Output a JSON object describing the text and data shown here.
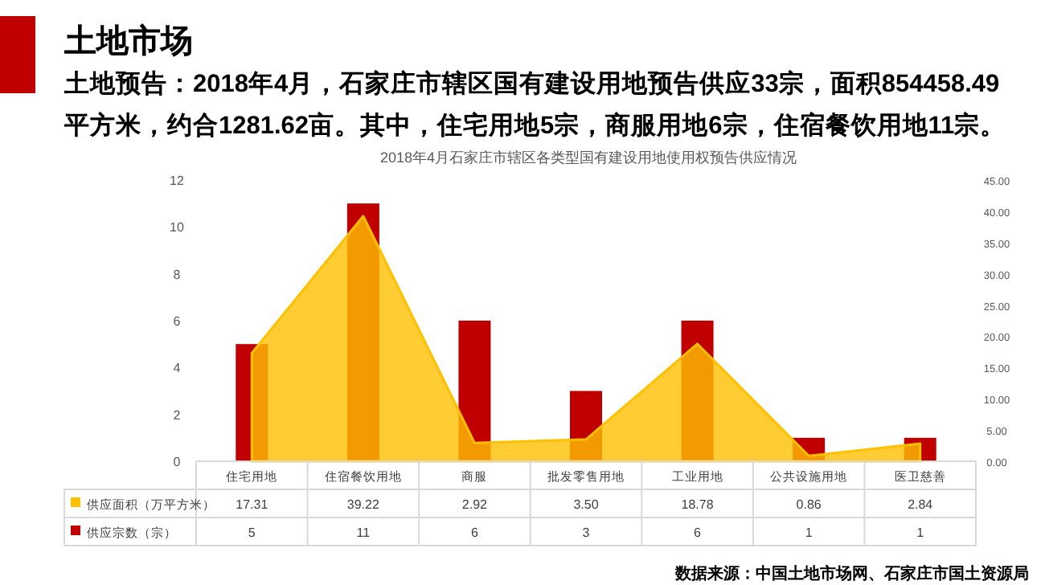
{
  "chart_data": {
    "type": "bar",
    "title": "土地市场",
    "subtitle": "土地预告：2018年4月，石家庄市辖区国有建设用地预告供应33宗，面积854458.49平方米，约合1281.62亩。其中，住宅用地5宗，商服用地6宗，住宿餐饮用地11宗。",
    "annotations": [
      "2018年4月石家庄市辖区各类型国有建设用地使用权预告供应情况",
      "数据来源：中国土地市场网、石家庄市国土资源局"
    ],
    "categories": [
      "住宅用地",
      "住宿餐饮用地",
      "商服",
      "批发零售用地",
      "工业用地",
      "公共设施用地",
      "医卫慈善"
    ],
    "series": [
      {
        "name": "供应面积（万平方米）",
        "type": "area",
        "axis": "y2",
        "color": "#ffc000",
        "values": [
          17.31,
          39.22,
          2.92,
          3.5,
          18.78,
          0.86,
          2.84
        ],
        "value_labels": [
          "17.31",
          "39.22",
          "2.92",
          "3.50",
          "18.78",
          "0.86",
          "2.84"
        ]
      },
      {
        "name": "供应宗数（宗）",
        "color": "#c00000",
        "values": [
          5,
          11,
          6,
          3,
          6,
          1,
          1
        ]
      }
    ],
    "ylim": [
      0,
      12
    ],
    "yticks": [
      0,
      2,
      4,
      6,
      8,
      10,
      12
    ],
    "y2lim": [
      0,
      45
    ],
    "y2ticks": [
      {
        "value": 0,
        "label": "0.00"
      },
      {
        "value": 5,
        "label": "5.00"
      },
      {
        "value": 10,
        "label": "10.00"
      },
      {
        "value": 15,
        "label": "15.00"
      },
      {
        "value": 20,
        "label": "20.00"
      },
      {
        "value": 25,
        "label": "25.00"
      },
      {
        "value": 30,
        "label": "30.00"
      },
      {
        "value": 35,
        "label": "35.00"
      },
      {
        "value": 40,
        "label": "40.00"
      },
      {
        "value": 45,
        "label": "45.00"
      }
    ],
    "data_labels": true,
    "legend": "bottom",
    "grid": false
  }
}
